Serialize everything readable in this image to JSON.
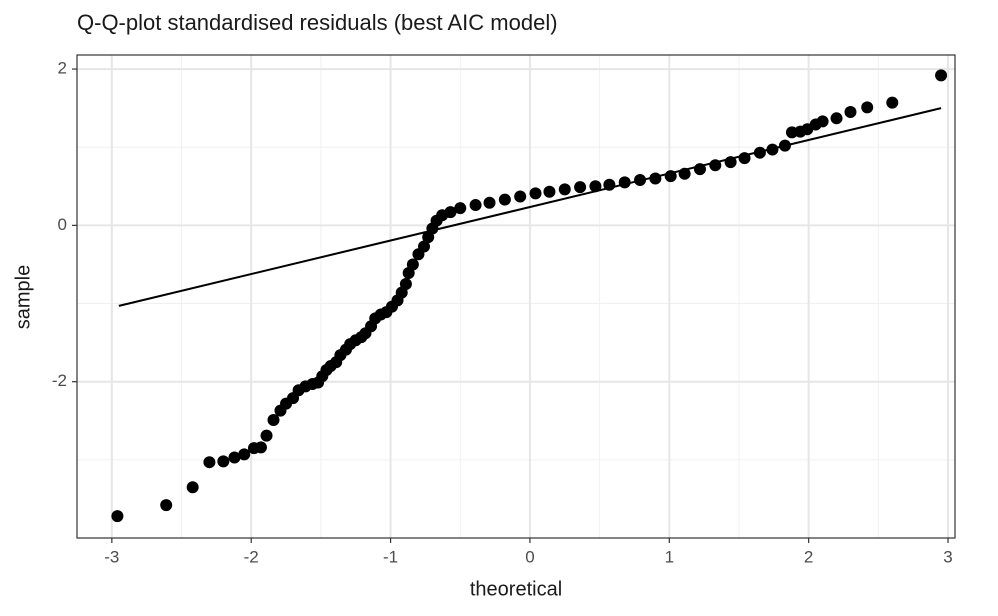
{
  "chart_data": {
    "type": "scatter",
    "title": "Q-Q-plot standardised residuals (best AIC model)",
    "x_label": "theoretical",
    "y_label": "sample",
    "xlim": [
      -3.25,
      3.05
    ],
    "ylim": [
      -4.0,
      2.18
    ],
    "xticks": [
      -3,
      -2,
      -1,
      0,
      1,
      2,
      3
    ],
    "yticks": [
      -2,
      0,
      2
    ],
    "grid": true,
    "color": "#000000",
    "line_color": "#000000",
    "reference_line": {
      "x": [
        -2.95,
        2.95
      ],
      "y": [
        -1.03,
        1.5
      ]
    },
    "x": [
      -2.96,
      -2.61,
      -2.42,
      -2.3,
      -2.2,
      -2.12,
      -2.05,
      -1.98,
      -1.93,
      -1.89,
      -1.84,
      -1.79,
      -1.75,
      -1.7,
      -1.66,
      -1.61,
      -1.56,
      -1.52,
      -1.49,
      -1.46,
      -1.43,
      -1.39,
      -1.36,
      -1.32,
      -1.29,
      -1.25,
      -1.21,
      -1.18,
      -1.14,
      -1.11,
      -1.07,
      -1.03,
      -0.99,
      -0.95,
      -0.92,
      -0.89,
      -0.87,
      -0.84,
      -0.8,
      -0.76,
      -0.73,
      -0.7,
      -0.67,
      -0.63,
      -0.57,
      -0.5,
      -0.39,
      -0.29,
      -0.18,
      -0.07,
      0.04,
      0.14,
      0.25,
      0.36,
      0.47,
      0.57,
      0.68,
      0.79,
      0.9,
      1.01,
      1.11,
      1.22,
      1.33,
      1.44,
      1.54,
      1.65,
      1.74,
      1.83,
      1.88,
      1.94,
      1.99,
      2.05,
      2.1,
      2.2,
      2.3,
      2.42,
      2.6,
      2.95
    ],
    "y": [
      -3.72,
      -3.58,
      -3.35,
      -3.03,
      -3.02,
      -2.97,
      -2.93,
      -2.85,
      -2.84,
      -2.69,
      -2.49,
      -2.37,
      -2.28,
      -2.21,
      -2.11,
      -2.06,
      -2.03,
      -2.01,
      -1.93,
      -1.85,
      -1.8,
      -1.75,
      -1.66,
      -1.59,
      -1.52,
      -1.47,
      -1.43,
      -1.38,
      -1.29,
      -1.19,
      -1.14,
      -1.11,
      -1.04,
      -0.96,
      -0.86,
      -0.75,
      -0.61,
      -0.5,
      -0.37,
      -0.27,
      -0.15,
      -0.04,
      0.06,
      0.13,
      0.17,
      0.22,
      0.26,
      0.29,
      0.33,
      0.37,
      0.41,
      0.43,
      0.46,
      0.49,
      0.5,
      0.52,
      0.55,
      0.58,
      0.6,
      0.63,
      0.66,
      0.72,
      0.77,
      0.81,
      0.86,
      0.93,
      0.97,
      1.02,
      1.19,
      1.2,
      1.23,
      1.29,
      1.33,
      1.37,
      1.45,
      1.51,
      1.57,
      1.92
    ]
  }
}
